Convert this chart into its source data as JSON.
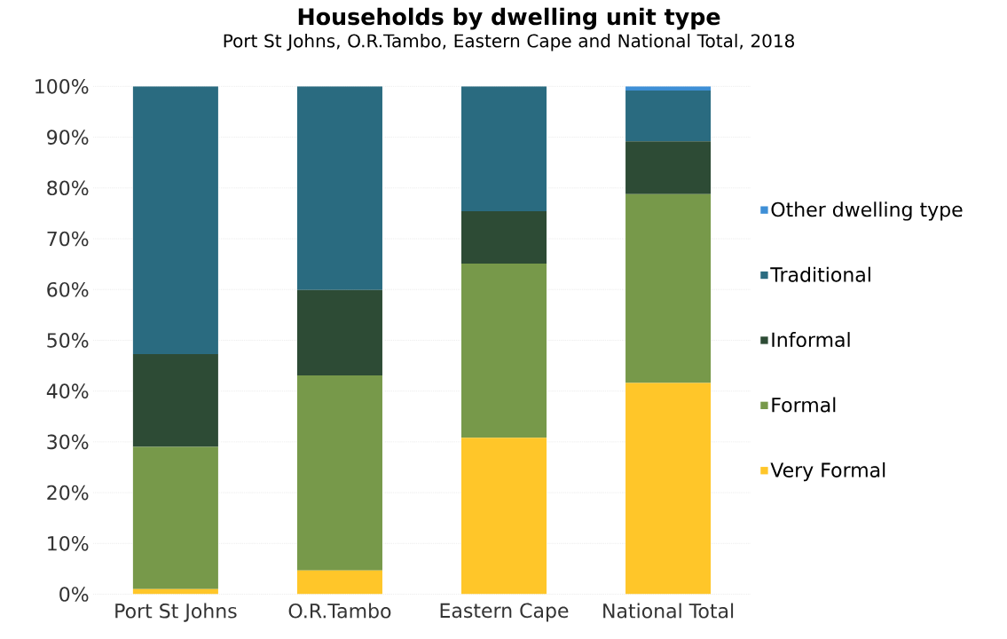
{
  "chart_data": {
    "type": "bar",
    "stacked": true,
    "title": "Households by dwelling unit type",
    "subtitle": "Port St Johns, O.R.Tambo, Eastern Cape and National Total, 2018",
    "categories": [
      "Port St Johns",
      "O.R.Tambo",
      "Eastern Cape",
      "National Total"
    ],
    "series": [
      {
        "name": "Very Formal",
        "color": "#ffc629",
        "values": [
          1,
          4.7,
          30.8,
          41.6
        ]
      },
      {
        "name": "Formal",
        "color": "#77994a",
        "values": [
          28,
          38.4,
          34.3,
          37.2
        ]
      },
      {
        "name": "Informal",
        "color": "#2d4b35",
        "values": [
          18.3,
          16.8,
          10.3,
          10.4
        ]
      },
      {
        "name": "Traditional",
        "color": "#2a6b80",
        "values": [
          52.7,
          40.1,
          24.6,
          10.0
        ]
      },
      {
        "name": "Other dwelling type",
        "color": "#3e8fd6",
        "values": [
          0,
          0,
          0,
          0.8
        ]
      }
    ],
    "ylim": [
      0,
      100
    ],
    "yticks": [
      {
        "value": 0,
        "label": "0%"
      },
      {
        "value": 10,
        "label": "10%"
      },
      {
        "value": 20,
        "label": "20%"
      },
      {
        "value": 30,
        "label": "30%"
      },
      {
        "value": 40,
        "label": "40%"
      },
      {
        "value": 50,
        "label": "50%"
      },
      {
        "value": 60,
        "label": "60%"
      },
      {
        "value": 70,
        "label": "70%"
      },
      {
        "value": 80,
        "label": "80%"
      },
      {
        "value": 90,
        "label": "90%"
      },
      {
        "value": 100,
        "label": "100%"
      }
    ],
    "grid": "y",
    "legend": "right"
  }
}
